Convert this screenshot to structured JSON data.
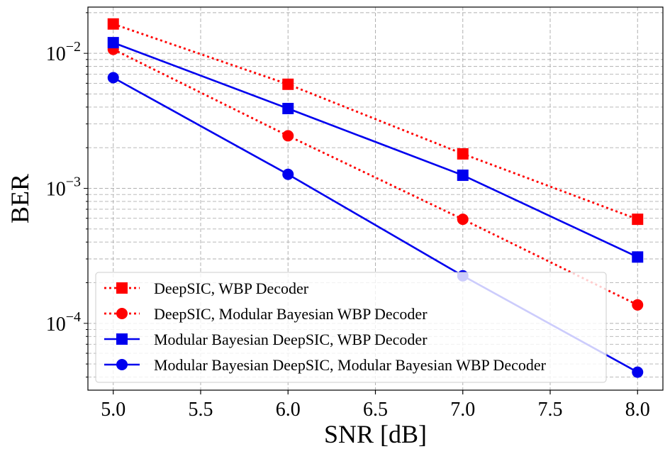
{
  "chart_data": {
    "type": "line",
    "xlabel": "SNR [dB]",
    "ylabel": "BER",
    "yscale": "log",
    "xlim": [
      4.855,
      8.145
    ],
    "ylim": [
      3.2e-05,
      0.022
    ],
    "x_ticks": [
      "5.0",
      "5.5",
      "6.0",
      "6.5",
      "7.0",
      "7.5",
      "8.0"
    ],
    "x_tick_values": [
      5.0,
      5.5,
      6.0,
      6.5,
      7.0,
      7.5,
      8.0
    ],
    "y_ticks": [
      {
        "base": "10",
        "exp": "−2",
        "value": 0.01
      },
      {
        "base": "10",
        "exp": "−3",
        "value": 0.001
      },
      {
        "base": "10",
        "exp": "−4",
        "value": 0.0001
      }
    ],
    "grid": true,
    "legend_position": "lower-left",
    "x": [
      5.0,
      6.0,
      7.0,
      8.0
    ],
    "series": [
      {
        "name": "DeepSIC, WBP Decoder",
        "values": [
          0.0165,
          0.0059,
          0.0018,
          0.00059
        ],
        "color": "#ff0000",
        "line": "dotted",
        "marker": "square"
      },
      {
        "name": "DeepSIC, Modular Bayesian WBP Decoder",
        "values": [
          0.0107,
          0.00245,
          0.00059,
          0.000137
        ],
        "color": "#ff0000",
        "line": "dotted",
        "marker": "circle"
      },
      {
        "name": "Modular Bayesian DeepSIC, WBP Decoder",
        "values": [
          0.012,
          0.0039,
          0.00125,
          0.00031
        ],
        "color": "#0000ee",
        "line": "solid",
        "marker": "square"
      },
      {
        "name": "Modular Bayesian DeepSIC, Modular Bayesian WBP Decoder",
        "values": [
          0.0066,
          0.00127,
          0.000225,
          4.35e-05
        ],
        "color": "#0000ee",
        "line": "solid",
        "marker": "circle"
      }
    ]
  }
}
